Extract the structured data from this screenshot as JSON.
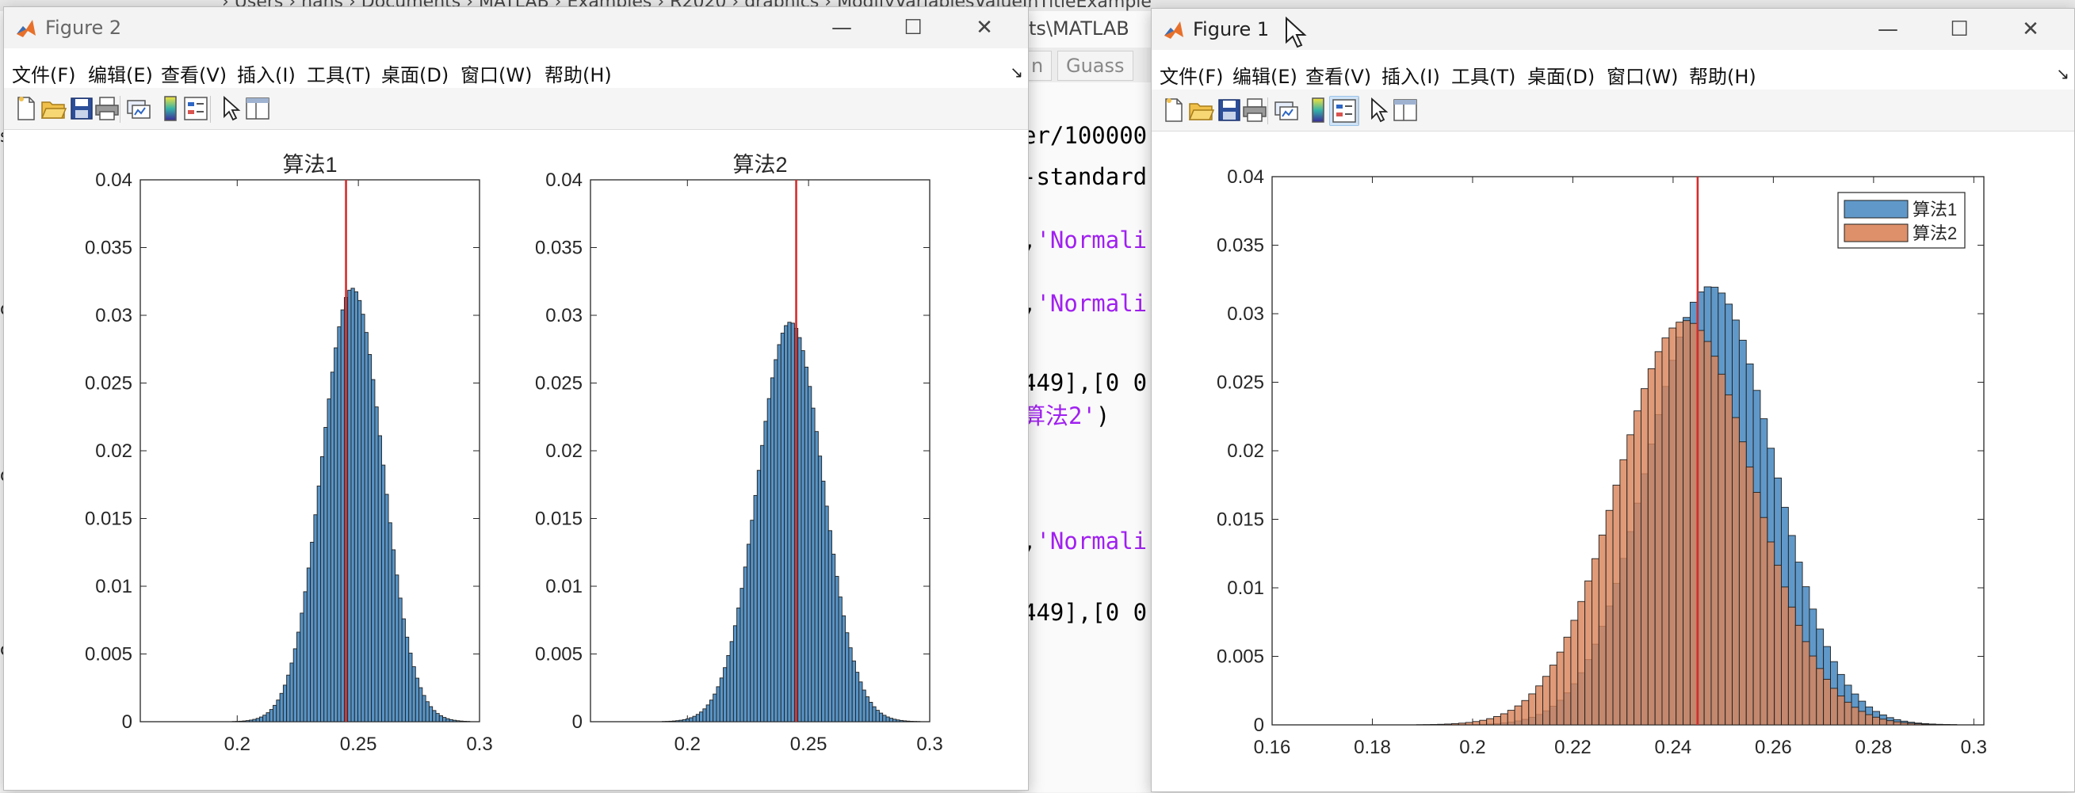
{
  "background_editor": {
    "path_text": "› Users › hans › Documents › MATLAB › Examples › R2020 › graphics › ModifyVariablesValueInTitleExample",
    "path_text_right": "ents\\MATLAB",
    "tabs": [
      "n",
      "Guass"
    ],
    "code_lines": [
      {
        "code": "er/100000",
        "string": ""
      },
      {
        "code": "-standard",
        "string": ""
      },
      {
        "code": ",",
        "string": "'Normali"
      },
      {
        "code": ",",
        "string": "'Normali"
      },
      {
        "code": "449],[0 0",
        "string": ""
      },
      {
        "code": "",
        "string": "算法2'",
        "tail": ")"
      },
      {
        "code": ",",
        "string": "'Normali"
      },
      {
        "code": "449],[0 0",
        "string": ""
      }
    ],
    "left_letters": [
      "s",
      "d",
      "d",
      "c"
    ],
    "bottom_text": "..."
  },
  "menu": [
    "文件(F)",
    "编辑(E)",
    "查看(V)",
    "插入(I)",
    "工具(T)",
    "桌面(D)",
    "窗口(W)",
    "帮助(H)"
  ],
  "menu_arrow": "↘",
  "window_controls": {
    "minimize": "—",
    "maximize": "☐",
    "close": "✕"
  },
  "colors": {
    "series1": "#4f8ec3",
    "series2": "#d9845a",
    "red_line": "#d62c2c",
    "matlab_logo": "#e8702a"
  },
  "icons": [
    "new-figure-icon",
    "open-file-icon",
    "save-icon",
    "print-icon",
    "link-plot-icon",
    "colorbar-icon",
    "legend-icon",
    "pointer-icon",
    "property-inspector-icon"
  ],
  "figure2": {
    "title": "Figure 2",
    "chart_data": [
      {
        "type": "bar",
        "title": "算法1",
        "xlim": [
          0.16,
          0.3
        ],
        "ylim": [
          0,
          0.04
        ],
        "xticks": [
          "0.2",
          "0.25",
          "0.3"
        ],
        "xtick_values": [
          0.2,
          0.25,
          0.3
        ],
        "yticks": [
          "0",
          "0.005",
          "0.01",
          "0.015",
          "0.02",
          "0.025",
          "0.03",
          "0.035",
          "0.04"
        ],
        "distribution": {
          "mean": 0.2475,
          "peak": 0.032,
          "sigma": 0.0125,
          "bin_width": 0.0014,
          "range": [
            0.17,
            0.295
          ]
        },
        "vertical_line_x": 0.2449
      },
      {
        "type": "bar",
        "title": "算法2",
        "xlim": [
          0.16,
          0.3
        ],
        "ylim": [
          0,
          0.04
        ],
        "xticks": [
          "0.2",
          "0.25",
          "0.3"
        ],
        "xtick_values": [
          0.2,
          0.25,
          0.3
        ],
        "yticks": [
          "0",
          "0.005",
          "0.01",
          "0.015",
          "0.02",
          "0.025",
          "0.03",
          "0.035",
          "0.04"
        ],
        "distribution": {
          "mean": 0.2425,
          "peak": 0.0295,
          "sigma": 0.0135,
          "bin_width": 0.0014,
          "range": [
            0.17,
            0.295
          ]
        },
        "vertical_line_x": 0.2449
      }
    ]
  },
  "figure1": {
    "title": "Figure 1",
    "chart_data": {
      "type": "bar",
      "xlim": [
        0.16,
        0.302
      ],
      "ylim": [
        0,
        0.04
      ],
      "xticks": [
        "0.16",
        "0.18",
        "0.2",
        "0.22",
        "0.24",
        "0.26",
        "0.28",
        "0.3"
      ],
      "xtick_values": [
        0.16,
        0.18,
        0.2,
        0.22,
        0.24,
        0.26,
        0.28,
        0.3
      ],
      "yticks": [
        "0",
        "0.005",
        "0.01",
        "0.015",
        "0.02",
        "0.025",
        "0.03",
        "0.035",
        "0.04"
      ],
      "legend": {
        "placement": "top-right",
        "entries": [
          "算法1",
          "算法2"
        ]
      },
      "series": [
        {
          "name": "算法1",
          "distribution": {
            "mean": 0.2475,
            "peak": 0.032,
            "sigma": 0.0125,
            "bin_width": 0.0014,
            "range": [
              0.165,
              0.298
            ]
          }
        },
        {
          "name": "算法2",
          "distribution": {
            "mean": 0.2425,
            "peak": 0.0295,
            "sigma": 0.0135,
            "bin_width": 0.0014,
            "range": [
              0.165,
              0.298
            ]
          }
        }
      ],
      "vertical_line_x": 0.2449
    }
  }
}
